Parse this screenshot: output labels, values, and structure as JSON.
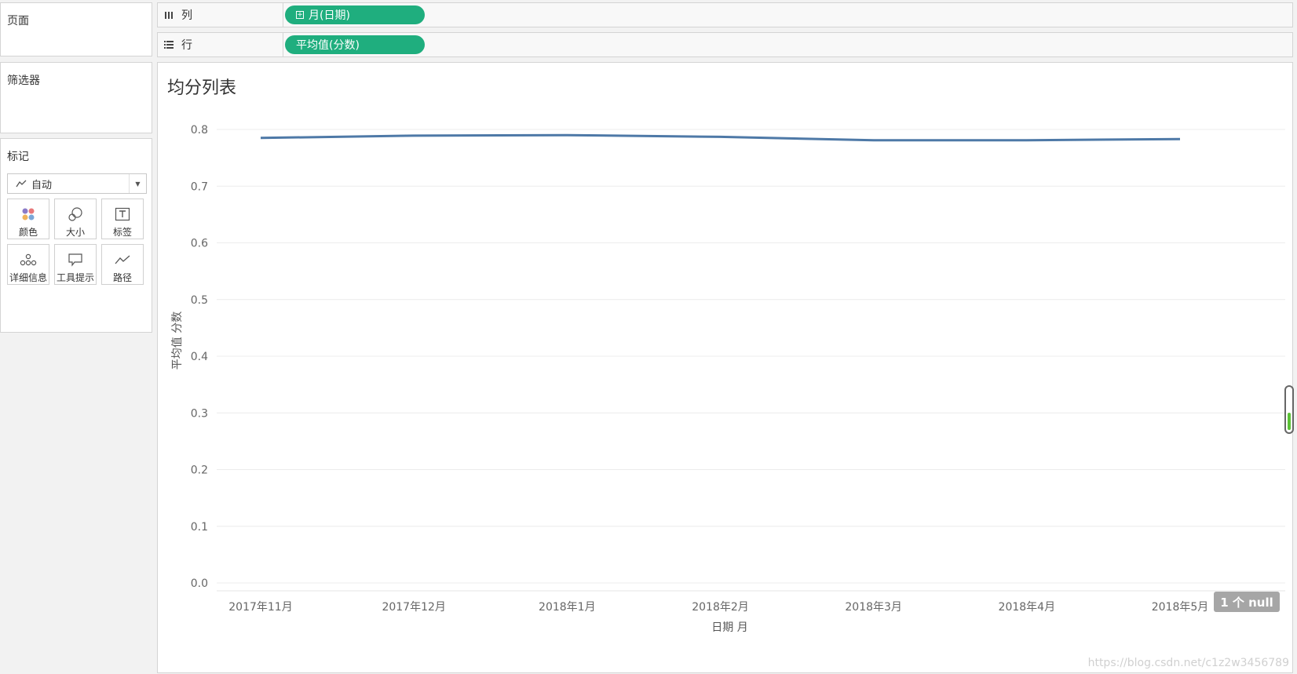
{
  "left_panel": {
    "pages_title": "页面",
    "filters_title": "筛选器",
    "marks_title": "标记",
    "mark_type": "自动",
    "mark_buttons": [
      {
        "label": "颜色",
        "icon": "color-dots-icon"
      },
      {
        "label": "大小",
        "icon": "size-circles-icon"
      },
      {
        "label": "标签",
        "icon": "label-t-icon"
      },
      {
        "label": "详细信息",
        "icon": "detail-dots-icon"
      },
      {
        "label": "工具提示",
        "icon": "tooltip-bubble-icon"
      },
      {
        "label": "路径",
        "icon": "path-line-icon"
      }
    ]
  },
  "shelves": {
    "columns": {
      "label": "列",
      "pill": "月(日期)"
    },
    "rows": {
      "label": "行",
      "pill": "平均值(分数)"
    }
  },
  "view": {
    "title": "均分列表",
    "null_badge": "1 个 null",
    "watermark": "https://blog.csdn.net/c1z2w3456789"
  },
  "chart_data": {
    "type": "line",
    "title": "均分列表",
    "xlabel": "日期 月",
    "ylabel": "平均值 分数",
    "categories": [
      "2017年11月",
      "2017年12月",
      "2018年1月",
      "2018年2月",
      "2018年3月",
      "2018年4月",
      "2018年5月"
    ],
    "series": [
      {
        "values": [
          0.785,
          0.789,
          0.79,
          0.787,
          0.781,
          0.781,
          0.783
        ]
      }
    ],
    "ylim": [
      0,
      0.8
    ],
    "yticks": [
      "0.0",
      "0.1",
      "0.2",
      "0.3",
      "0.4",
      "0.5",
      "0.6",
      "0.7",
      "0.8"
    ],
    "grid": true,
    "line_color": "#4e79a7"
  }
}
